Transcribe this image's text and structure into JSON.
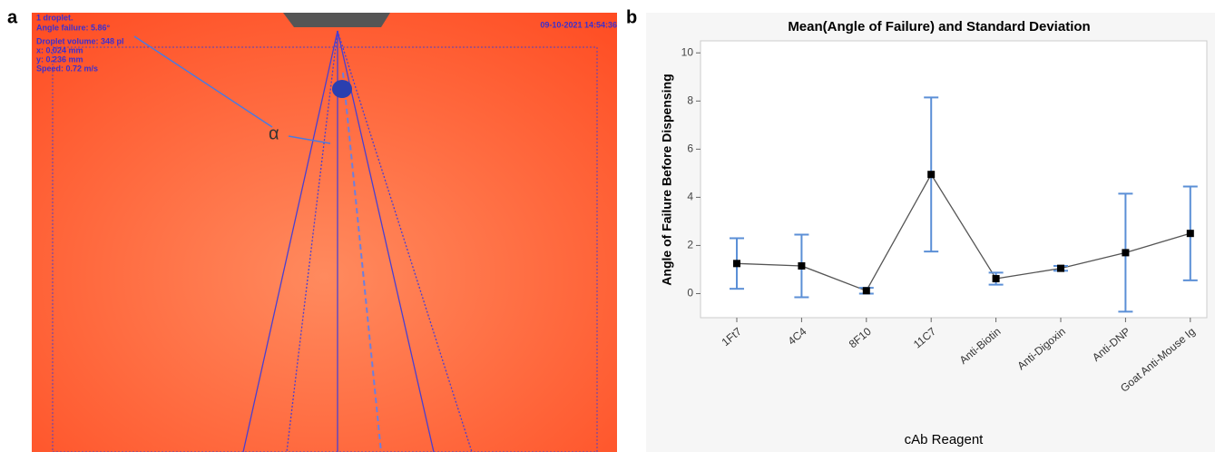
{
  "panel_a": {
    "label": "a",
    "info": [
      "1 droplet.",
      "Angle failure: 5.86°",
      "Droplet volume: 348 pl",
      "x: 0.024 mm",
      "y: 0.236 mm",
      "Speed: 0.72 m/s"
    ],
    "timestamp": "09-10-2021 14:54:36",
    "angle_symbol": "α"
  },
  "panel_b": {
    "label": "b"
  },
  "chart_data": {
    "type": "line",
    "title": "Mean(Angle of Failure) and Standard Deviation",
    "x_label": "cAb Reagent",
    "y_label": "Angle of Failure Before Dispensing",
    "categories": [
      "1Ft7",
      "4C4",
      "8F10",
      "11C7",
      "Anti-Biotin",
      "Anti-Digoxin",
      "Anti-DNP",
      "Goat Anti-Mouse Ig"
    ],
    "values": [
      1.25,
      1.15,
      0.12,
      4.95,
      0.62,
      1.05,
      1.7,
      2.5
    ],
    "errors": [
      1.05,
      1.3,
      0.12,
      3.2,
      0.25,
      0.1,
      2.45,
      1.95
    ],
    "color": "#000000",
    "error_color": "#5b8fd6",
    "ylim": [
      -1,
      10.5
    ],
    "yticks": [
      0,
      2,
      4,
      6,
      8,
      10
    ]
  }
}
